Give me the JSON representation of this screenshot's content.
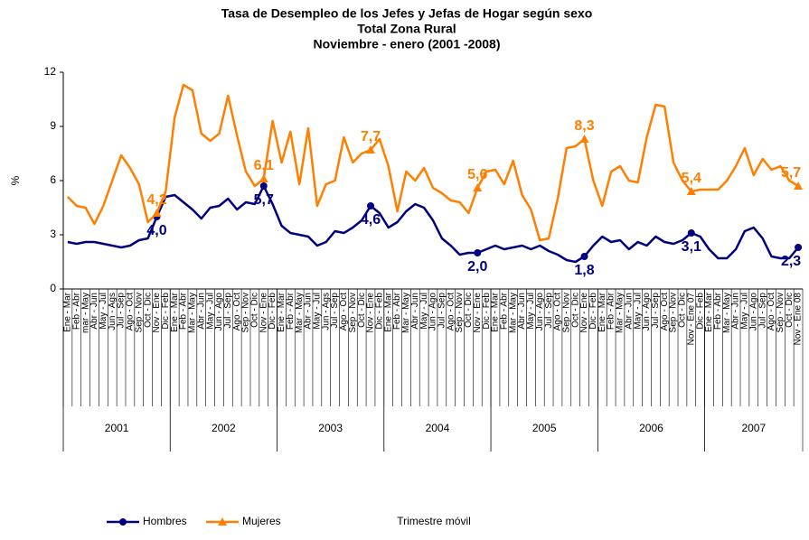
{
  "chart_data": {
    "type": "line",
    "title_lines": [
      "Tasa de Desempleo de los Jefes y Jefas de Hogar según sexo",
      "Total Zona Rural",
      "Noviembre  - enero (2001 -2008)"
    ],
    "y_label": "%",
    "x_label": "Trimestre móvil",
    "ylim": [
      0,
      12
    ],
    "yticks": [
      0,
      3,
      6,
      9,
      12
    ],
    "years": [
      "2001",
      "2002",
      "2003",
      "2004",
      "2005",
      "2006",
      "2007"
    ],
    "categories": [
      "Ene - Mar",
      "Feb - Abr",
      "mar - May",
      "Abr - Jun",
      "May - Jul",
      "Jun - Ags",
      "Jul - Sep",
      "Ago - Oct",
      "Sep - Nov",
      "Oct - Dic",
      "Nov - Ene",
      "Dic - Feb",
      "Ene - Mar",
      "Feb - Abr",
      "Mar - May",
      "Abr - Jun",
      "May - Jul",
      "Jun - Ago",
      "Jul - Sep",
      "Ago - Oct",
      "Sep - Nov",
      "Oct - Dic",
      "Nov - Ene",
      "Dic - Feb",
      "Ene - Mar",
      "Feb - Abr",
      "Mar - May",
      "Abr - Jun",
      "May - Jul",
      "Jun - Ags",
      "Jul - Sep",
      "Ago - Oct",
      "Sep - Nov",
      "Oct - Dic",
      "Nov - Ene",
      "Dic - Feb",
      "Ene - Mar",
      "Feb - Abr",
      "Mar - May",
      "Abr - Jun",
      "May - Jul",
      "Jun - Ago",
      "Jul - Sep",
      "Ago - Oct",
      "Sep - Nov",
      "Oct - Dic",
      "Nov - Ene",
      "Dic - Feb",
      "Ene - Mar",
      "Feb - Abr",
      "Mar - May",
      "Abr - Jun",
      "May - Jul",
      "Jun - Ago",
      "Jul - Sep",
      "Ago - Oct",
      "Sep - Nov",
      "Oct - Dic",
      "Nov - Ene",
      "Dic - Feb",
      "Ene - Mar",
      "Feb - Abr",
      "Mar - May",
      "Abr - Jun",
      "May - Jul",
      "Jun - Ago",
      "Jul - Sep",
      "Ago - Oct",
      "Sep - Nov",
      "Oct - Dic",
      "Nov - Ene 07",
      "Dic - Feb",
      "Ene - Mar",
      "Feb - Abr",
      "Mar - May",
      "Abr - Jun",
      "May - Jul",
      "Jun - Ago",
      "Jul - Sep",
      "Ago - Oct",
      "Sep - Nov",
      "Oct - Dic",
      "Nov - Ene 08"
    ],
    "series": [
      {
        "name": "Hombres",
        "color": "#000080",
        "marker": "circle",
        "values": [
          2.6,
          2.5,
          2.6,
          2.6,
          2.5,
          2.4,
          2.3,
          2.4,
          2.7,
          2.8,
          4.0,
          5.1,
          5.2,
          4.8,
          4.4,
          3.9,
          4.5,
          4.6,
          5.0,
          4.4,
          4.8,
          4.7,
          5.7,
          4.7,
          3.5,
          3.1,
          3.0,
          2.9,
          2.4,
          2.6,
          3.2,
          3.1,
          3.4,
          3.8,
          4.6,
          4.2,
          3.4,
          3.7,
          4.3,
          4.7,
          4.5,
          3.8,
          2.8,
          2.4,
          1.9,
          2.0,
          2.0,
          2.2,
          2.4,
          2.2,
          2.3,
          2.4,
          2.2,
          2.4,
          2.1,
          1.9,
          1.6,
          1.5,
          1.8,
          2.4,
          2.9,
          2.6,
          2.7,
          2.2,
          2.6,
          2.4,
          2.9,
          2.6,
          2.5,
          2.7,
          3.1,
          2.9,
          2.2,
          1.7,
          1.7,
          2.2,
          3.2,
          3.4,
          2.8,
          1.8,
          1.7,
          1.7,
          2.3
        ],
        "value_labels": [
          null,
          null,
          null,
          null,
          null,
          null,
          null,
          null,
          null,
          null,
          "4,0",
          null,
          null,
          null,
          null,
          null,
          null,
          null,
          null,
          null,
          null,
          null,
          "5,7",
          null,
          null,
          null,
          null,
          null,
          null,
          null,
          null,
          null,
          null,
          null,
          "4,6",
          null,
          null,
          null,
          null,
          null,
          null,
          null,
          null,
          null,
          null,
          null,
          "2,0",
          null,
          null,
          null,
          null,
          null,
          null,
          null,
          null,
          null,
          null,
          null,
          "1,8",
          null,
          null,
          null,
          null,
          null,
          null,
          null,
          null,
          null,
          null,
          null,
          "3,1",
          null,
          null,
          null,
          null,
          null,
          null,
          null,
          null,
          null,
          null,
          null,
          "2,3"
        ]
      },
      {
        "name": "Mujeres",
        "color": "#ff7f00",
        "marker": "triangle",
        "values": [
          5.1,
          4.6,
          4.5,
          3.6,
          4.6,
          6.0,
          7.4,
          6.7,
          5.8,
          3.7,
          4.2,
          5.4,
          9.5,
          11.3,
          11.0,
          8.6,
          8.2,
          8.6,
          10.7,
          8.5,
          6.5,
          5.7,
          6.1,
          9.3,
          7.0,
          8.7,
          5.8,
          8.9,
          4.6,
          5.8,
          6.0,
          8.4,
          7.0,
          7.5,
          7.7,
          8.3,
          6.8,
          4.3,
          6.5,
          6.0,
          6.7,
          5.6,
          5.3,
          4.9,
          4.8,
          4.2,
          5.6,
          6.5,
          6.6,
          5.8,
          7.1,
          5.2,
          4.4,
          2.7,
          2.8,
          5.0,
          7.8,
          7.9,
          8.3,
          6.0,
          4.6,
          6.5,
          6.8,
          6.0,
          5.9,
          8.4,
          10.2,
          10.1,
          7.0,
          6.0,
          5.4,
          5.5,
          5.5,
          5.5,
          6.0,
          6.8,
          7.8,
          6.3,
          7.2,
          6.6,
          6.8,
          6.0,
          5.7
        ],
        "value_labels": [
          null,
          null,
          null,
          null,
          null,
          null,
          null,
          null,
          null,
          null,
          "4,2",
          null,
          null,
          null,
          null,
          null,
          null,
          null,
          null,
          null,
          null,
          null,
          "6,1",
          null,
          null,
          null,
          null,
          null,
          null,
          null,
          null,
          null,
          null,
          null,
          "7,7",
          null,
          null,
          null,
          null,
          null,
          null,
          null,
          null,
          null,
          null,
          null,
          "5,6",
          null,
          null,
          null,
          null,
          null,
          null,
          null,
          null,
          null,
          null,
          null,
          "8,3",
          null,
          null,
          null,
          null,
          null,
          null,
          null,
          null,
          null,
          null,
          null,
          "5,4",
          null,
          null,
          null,
          null,
          null,
          null,
          null,
          null,
          null,
          null,
          null,
          "5,7"
        ]
      }
    ]
  }
}
